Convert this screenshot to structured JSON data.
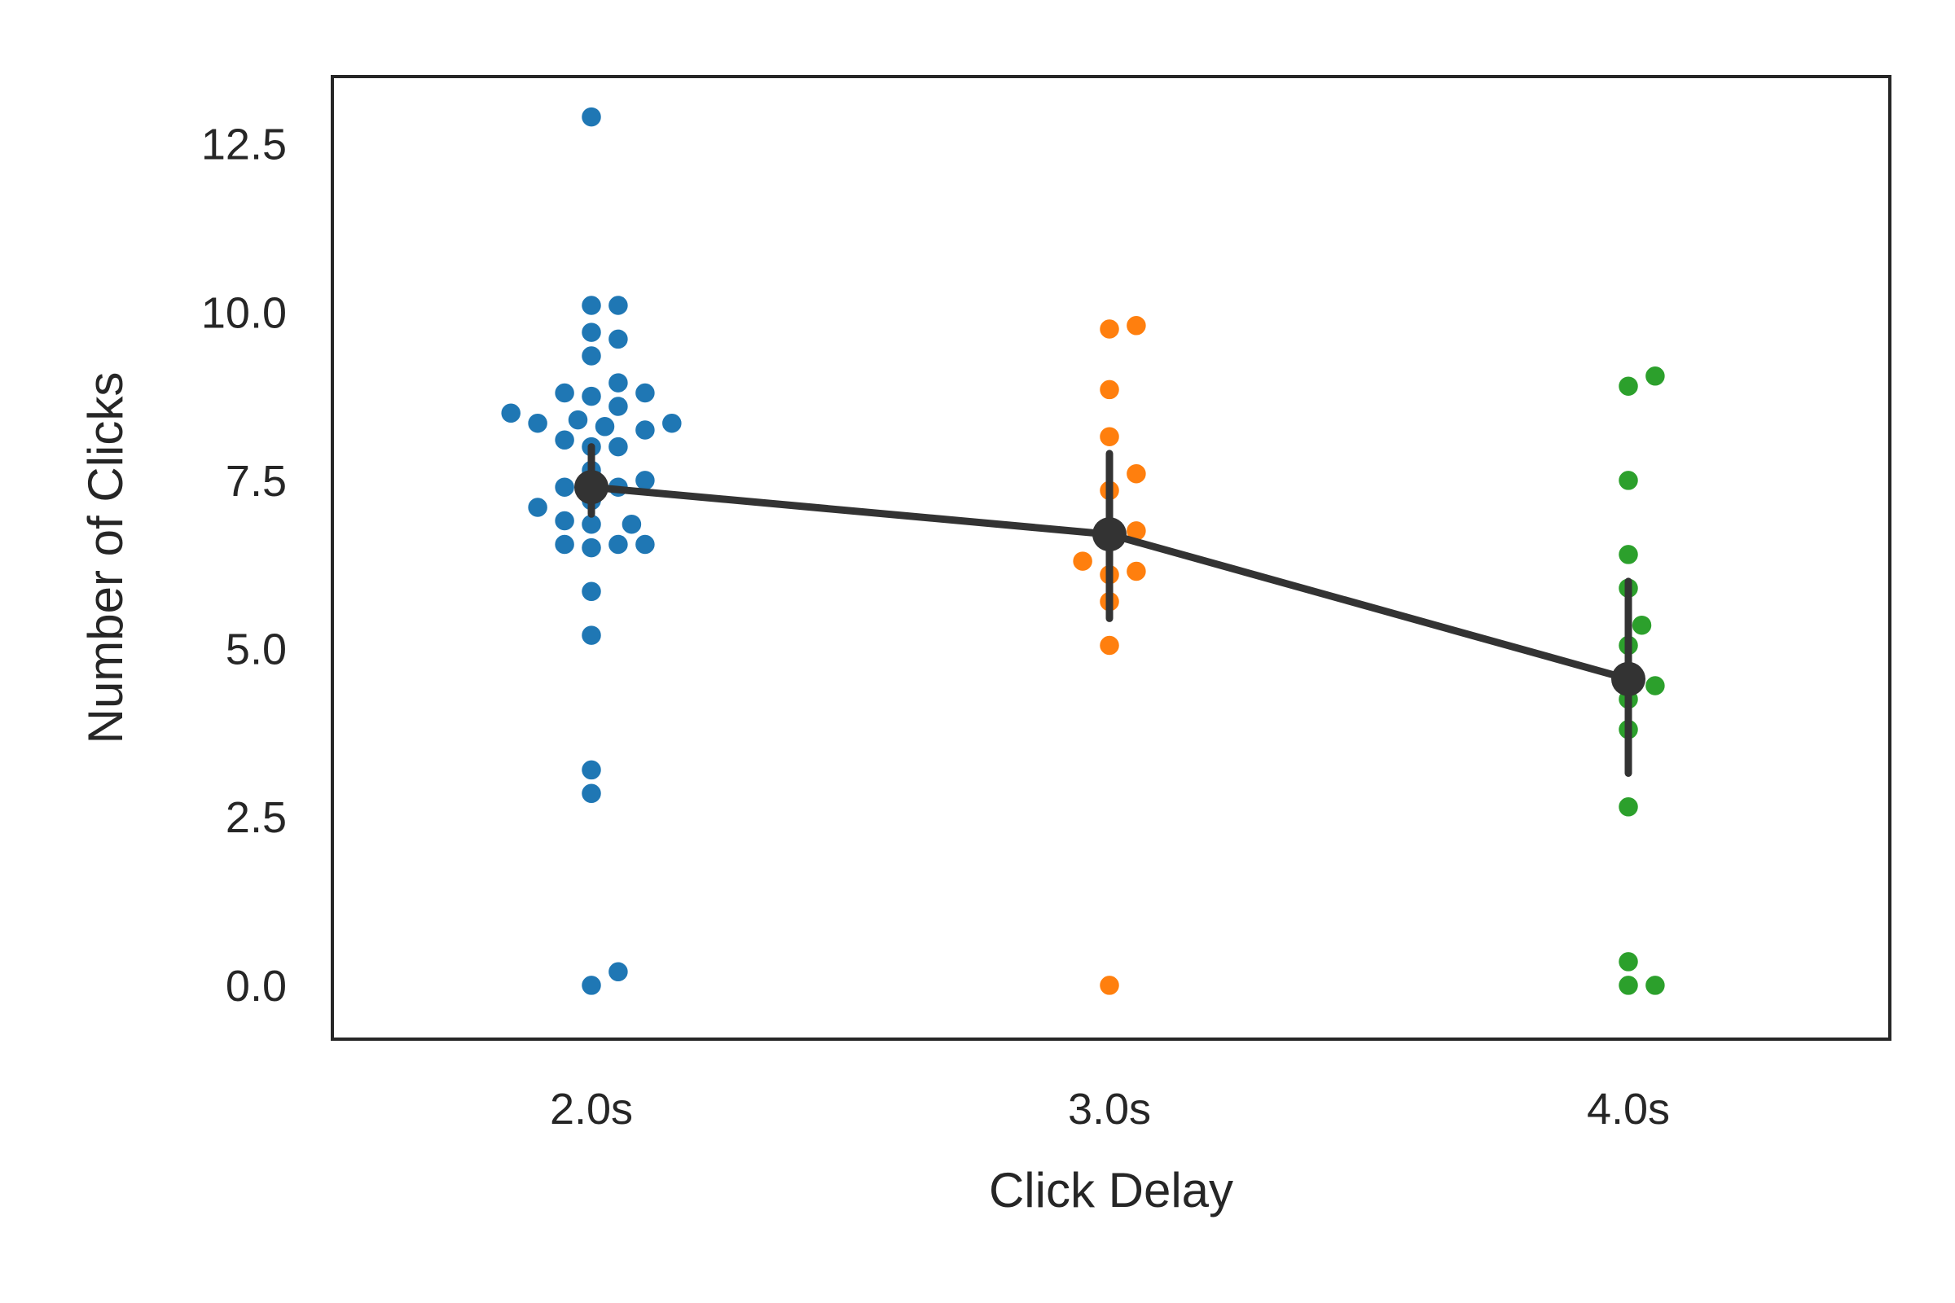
{
  "chart_data": {
    "type": "scatter",
    "subtype": "swarm-with-point-estimates",
    "title": "",
    "xlabel": "Click Delay",
    "ylabel": "Number of Clicks",
    "categories": [
      "2.0s",
      "3.0s",
      "4.0s"
    ],
    "ylim": [
      -0.8,
      13.5
    ],
    "yticks": [
      0.0,
      2.5,
      5.0,
      7.5,
      10.0,
      12.5
    ],
    "ytick_labels": [
      "0.0",
      "2.5",
      "5.0",
      "7.5",
      "10.0",
      "12.5"
    ],
    "grid": false,
    "legend": "none",
    "series": [
      {
        "category": "2.0s",
        "color": "#1f77b4",
        "values": [
          12.9,
          10.1,
          10.1,
          9.7,
          9.6,
          9.35,
          8.95,
          8.8,
          8.8,
          8.75,
          8.6,
          8.5,
          8.4,
          8.35,
          8.35,
          8.3,
          8.25,
          8.1,
          8.0,
          8.0,
          7.65,
          7.5,
          7.4,
          7.4,
          7.2,
          7.1,
          6.9,
          6.85,
          6.85,
          6.55,
          6.55,
          6.55,
          6.5,
          5.85,
          5.2,
          3.2,
          2.85,
          0.2,
          0.0
        ]
      },
      {
        "category": "3.0s",
        "color": "#ff7f0e",
        "values": [
          9.8,
          9.75,
          8.85,
          8.15,
          7.6,
          7.35,
          6.75,
          6.7,
          6.3,
          6.15,
          6.1,
          5.7,
          5.05,
          0.0
        ]
      },
      {
        "category": "4.0s",
        "color": "#2ca02c",
        "values": [
          9.05,
          8.9,
          7.5,
          6.4,
          5.9,
          5.35,
          5.05,
          4.45,
          4.25,
          3.8,
          2.65,
          0.35,
          0.0,
          0.0
        ]
      }
    ],
    "point_estimates": {
      "color": "#333333",
      "means": [
        7.4,
        6.7,
        4.55
      ],
      "ci_low": [
        7.0,
        5.45,
        3.15
      ],
      "ci_high": [
        8.0,
        7.9,
        6.0
      ]
    }
  }
}
